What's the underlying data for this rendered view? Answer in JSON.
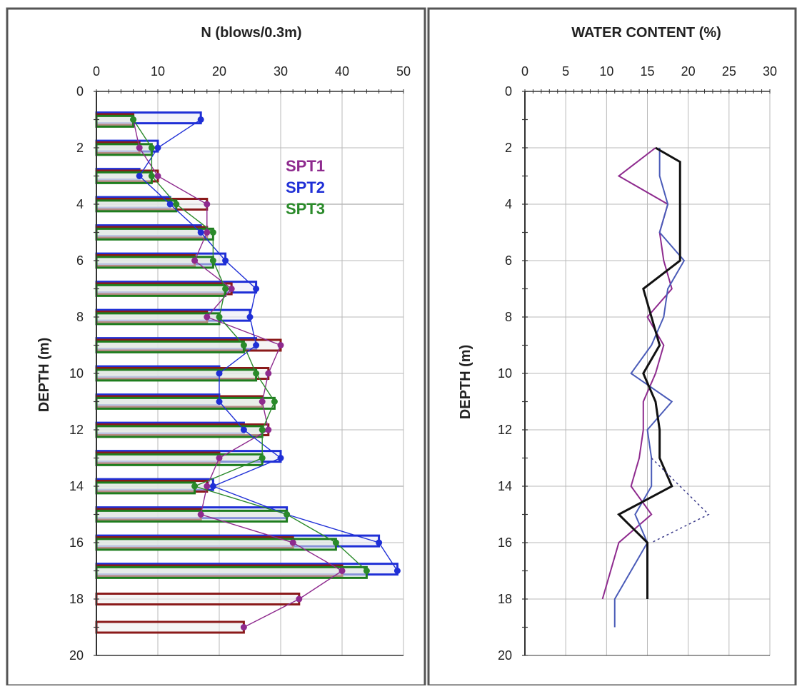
{
  "chart_data": [
    {
      "type": "line",
      "title": "N  (blows/0.3m)",
      "xlabel": "N  (blows/0.3m)",
      "ylabel": "DEPTH  (m)",
      "xlim": [
        0,
        50
      ],
      "ylim": [
        0,
        20
      ],
      "y_inverted": true,
      "x_axis_position": "top",
      "x_ticks": [
        "0",
        "10",
        "20",
        "30",
        "40",
        "50"
      ],
      "y_ticks": [
        "0",
        "2",
        "4",
        "6",
        "8",
        "10",
        "12",
        "14",
        "16",
        "18",
        "20"
      ],
      "grid": true,
      "legend_position": "top-right",
      "legend": [
        "SPT1",
        "SPT2",
        "SPT3"
      ],
      "series": [
        {
          "name": "SPT1",
          "color": "#8e2a8e",
          "bar_color": "#8b1a1a",
          "points": [
            {
              "depth": 1.0,
              "n": 6
            },
            {
              "depth": 2.0,
              "n": 7
            },
            {
              "depth": 3.0,
              "n": 10
            },
            {
              "depth": 4.0,
              "n": 18
            },
            {
              "depth": 5.0,
              "n": 18
            },
            {
              "depth": 6.0,
              "n": 16
            },
            {
              "depth": 7.0,
              "n": 22
            },
            {
              "depth": 8.0,
              "n": 18
            },
            {
              "depth": 9.0,
              "n": 30
            },
            {
              "depth": 10.0,
              "n": 28
            },
            {
              "depth": 11.0,
              "n": 27
            },
            {
              "depth": 12.0,
              "n": 28
            },
            {
              "depth": 13.0,
              "n": 20
            },
            {
              "depth": 14.0,
              "n": 18
            },
            {
              "depth": 15.0,
              "n": 17
            },
            {
              "depth": 16.0,
              "n": 32
            },
            {
              "depth": 17.0,
              "n": 40
            },
            {
              "depth": 18.0,
              "n": 33
            },
            {
              "depth": 19.0,
              "n": 24
            }
          ]
        },
        {
          "name": "SPT2",
          "color": "#1f2fd6",
          "bar_color": "#1f2fd6",
          "points": [
            {
              "depth": 1.0,
              "n": 17
            },
            {
              "depth": 2.0,
              "n": 10
            },
            {
              "depth": 3.0,
              "n": 7
            },
            {
              "depth": 4.0,
              "n": 12
            },
            {
              "depth": 5.0,
              "n": 17
            },
            {
              "depth": 6.0,
              "n": 21
            },
            {
              "depth": 7.0,
              "n": 26
            },
            {
              "depth": 8.0,
              "n": 25
            },
            {
              "depth": 9.0,
              "n": 26
            },
            {
              "depth": 10.0,
              "n": 20
            },
            {
              "depth": 11.0,
              "n": 20
            },
            {
              "depth": 12.0,
              "n": 24
            },
            {
              "depth": 13.0,
              "n": 30
            },
            {
              "depth": 14.0,
              "n": 19
            },
            {
              "depth": 15.0,
              "n": 31
            },
            {
              "depth": 16.0,
              "n": 46
            },
            {
              "depth": 17.0,
              "n": 49
            }
          ]
        },
        {
          "name": "SPT3",
          "color": "#2a8a2a",
          "bar_color": "#1e7d1e",
          "points": [
            {
              "depth": 1.0,
              "n": 6
            },
            {
              "depth": 2.0,
              "n": 9
            },
            {
              "depth": 3.0,
              "n": 9
            },
            {
              "depth": 4.0,
              "n": 13
            },
            {
              "depth": 5.0,
              "n": 19
            },
            {
              "depth": 6.0,
              "n": 19
            },
            {
              "depth": 7.0,
              "n": 21
            },
            {
              "depth": 8.0,
              "n": 20
            },
            {
              "depth": 9.0,
              "n": 24
            },
            {
              "depth": 10.0,
              "n": 26
            },
            {
              "depth": 11.0,
              "n": 29
            },
            {
              "depth": 12.0,
              "n": 27
            },
            {
              "depth": 13.0,
              "n": 27
            },
            {
              "depth": 14.0,
              "n": 16
            },
            {
              "depth": 15.0,
              "n": 31
            },
            {
              "depth": 16.0,
              "n": 39
            },
            {
              "depth": 17.0,
              "n": 44
            }
          ]
        }
      ]
    },
    {
      "type": "line",
      "title": "WATER CONTENT  (%)",
      "xlabel": "WATER CONTENT  (%)",
      "ylabel": "DEPTH  (m)",
      "xlim": [
        0,
        30
      ],
      "ylim": [
        0,
        20
      ],
      "y_inverted": true,
      "x_axis_position": "top",
      "x_ticks": [
        "0",
        "5",
        "10",
        "15",
        "20",
        "25",
        "30"
      ],
      "y_ticks": [
        "0",
        "2",
        "4",
        "6",
        "8",
        "10",
        "12",
        "14",
        "16",
        "18",
        "20"
      ],
      "grid": true,
      "series": [
        {
          "color": "#8e2a8e",
          "points": [
            {
              "wc": 16.0,
              "depth": 2.0
            },
            {
              "wc": 11.5,
              "depth": 3.0
            },
            {
              "wc": 17.5,
              "depth": 4.0
            },
            {
              "wc": 16.5,
              "depth": 5.0
            },
            {
              "wc": 17.0,
              "depth": 6.0
            },
            {
              "wc": 18.0,
              "depth": 7.0
            },
            {
              "wc": 15.0,
              "depth": 8.0
            },
            {
              "wc": 17.0,
              "depth": 9.0
            },
            {
              "wc": 16.0,
              "depth": 10.0
            },
            {
              "wc": 14.5,
              "depth": 11.0
            },
            {
              "wc": 14.5,
              "depth": 12.0
            },
            {
              "wc": 14.0,
              "depth": 13.0
            },
            {
              "wc": 13.0,
              "depth": 14.0
            },
            {
              "wc": 15.5,
              "depth": 15.0
            },
            {
              "wc": 11.5,
              "depth": 16.0
            },
            {
              "wc": 10.5,
              "depth": 17.0
            },
            {
              "wc": 9.5,
              "depth": 18.0
            }
          ]
        },
        {
          "color": "#4a5bb8",
          "points": [
            {
              "wc": 16.5,
              "depth": 2.0
            },
            {
              "wc": 16.5,
              "depth": 3.0
            },
            {
              "wc": 17.5,
              "depth": 4.0
            },
            {
              "wc": 16.5,
              "depth": 5.0
            },
            {
              "wc": 19.5,
              "depth": 6.0
            },
            {
              "wc": 17.5,
              "depth": 7.0
            },
            {
              "wc": 17.0,
              "depth": 8.0
            },
            {
              "wc": 15.5,
              "depth": 9.0
            },
            {
              "wc": 13.0,
              "depth": 10.0
            },
            {
              "wc": 18.0,
              "depth": 11.0
            },
            {
              "wc": 15.0,
              "depth": 12.0
            },
            {
              "wc": 15.5,
              "depth": 13.0
            },
            {
              "wc": 15.5,
              "depth": 14.0
            },
            {
              "wc": 13.5,
              "depth": 15.0
            },
            {
              "wc": 15.0,
              "depth": 16.0
            },
            {
              "wc": 13.0,
              "depth": 17.0
            },
            {
              "wc": 11.0,
              "depth": 18.0
            },
            {
              "wc": 11.0,
              "depth": 19.0
            }
          ]
        },
        {
          "color": "#111111",
          "points": [
            {
              "wc": 16.0,
              "depth": 2.0
            },
            {
              "wc": 19.0,
              "depth": 2.5
            },
            {
              "wc": 19.0,
              "depth": 4.0
            },
            {
              "wc": 19.0,
              "depth": 5.0
            },
            {
              "wc": 19.0,
              "depth": 6.0
            },
            {
              "wc": 14.5,
              "depth": 7.0
            },
            {
              "wc": 15.5,
              "depth": 8.0
            },
            {
              "wc": 16.5,
              "depth": 9.0
            },
            {
              "wc": 14.5,
              "depth": 10.0
            },
            {
              "wc": 16.0,
              "depth": 11.0
            },
            {
              "wc": 16.5,
              "depth": 12.0
            },
            {
              "wc": 16.5,
              "depth": 13.0
            },
            {
              "wc": 18.0,
              "depth": 14.0
            },
            {
              "wc": 11.5,
              "depth": 15.0
            },
            {
              "wc": 15.0,
              "depth": 16.0
            },
            {
              "wc": 15.0,
              "depth": 17.0
            },
            {
              "wc": 15.0,
              "depth": 18.0
            }
          ]
        },
        {
          "color": "#3a3a8a",
          "style": "dotted",
          "points": [
            {
              "wc": 15.5,
              "depth": 13.0
            },
            {
              "wc": 22.5,
              "depth": 15.0
            },
            {
              "wc": 15.5,
              "depth": 16.0
            }
          ]
        }
      ]
    }
  ]
}
